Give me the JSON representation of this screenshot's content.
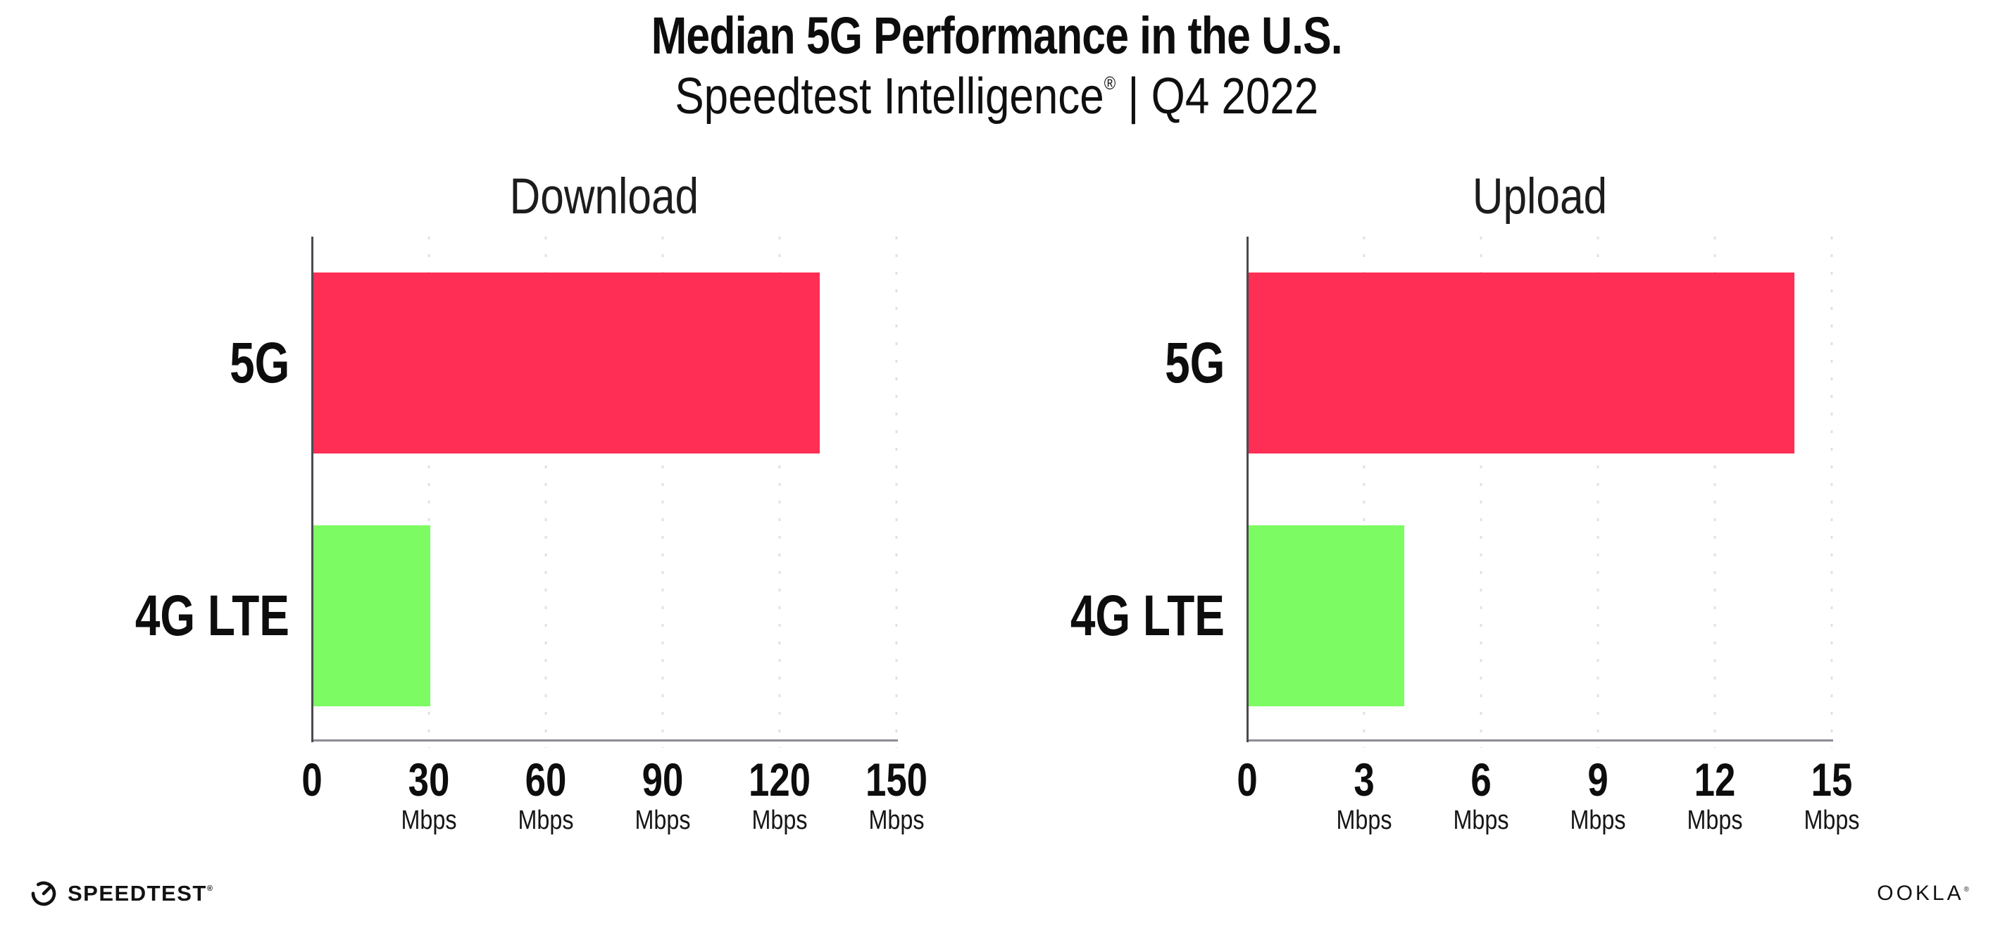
{
  "header": {
    "title": "Median 5G Performance in the U.S.",
    "subtitle_brand": "Speedtest Intelligence",
    "subtitle_mark": "®",
    "subtitle_rest": " | Q4 2022"
  },
  "chart_data": [
    {
      "type": "bar",
      "orientation": "horizontal",
      "title": "Download",
      "categories": [
        "5G",
        "4G LTE"
      ],
      "values": [
        130,
        30
      ],
      "unit": "Mbps",
      "xlim": [
        0,
        150
      ],
      "ticks": [
        {
          "value": 0,
          "label": "0",
          "unit": ""
        },
        {
          "value": 30,
          "label": "30",
          "unit": "Mbps"
        },
        {
          "value": 60,
          "label": "60",
          "unit": "Mbps"
        },
        {
          "value": 90,
          "label": "90",
          "unit": "Mbps"
        },
        {
          "value": 120,
          "label": "120",
          "unit": "Mbps"
        },
        {
          "value": 150,
          "label": "150",
          "unit": "Mbps"
        }
      ],
      "bar_colors": [
        "#FF2E55",
        "#7CFB63"
      ],
      "grid": "dotted-vertical",
      "legend": "none"
    },
    {
      "type": "bar",
      "orientation": "horizontal",
      "title": "Upload",
      "categories": [
        "5G",
        "4G LTE"
      ],
      "values": [
        14,
        4
      ],
      "unit": "Mbps",
      "xlim": [
        0,
        15
      ],
      "ticks": [
        {
          "value": 0,
          "label": "0",
          "unit": ""
        },
        {
          "value": 3,
          "label": "3",
          "unit": "Mbps"
        },
        {
          "value": 6,
          "label": "6",
          "unit": "Mbps"
        },
        {
          "value": 9,
          "label": "9",
          "unit": "Mbps"
        },
        {
          "value": 12,
          "label": "12",
          "unit": "Mbps"
        },
        {
          "value": 15,
          "label": "15",
          "unit": "Mbps"
        }
      ],
      "bar_colors": [
        "#FF2E55",
        "#7CFB63"
      ],
      "grid": "dotted-vertical",
      "legend": "none"
    }
  ],
  "colors": {
    "bar_5g": "#FF2E55",
    "bar_4g_lte": "#7CFB63",
    "gridline": "#E0E0EA",
    "axis_x": "#8C8C94",
    "axis_y": "#4A4A52",
    "text": "#111111"
  },
  "footer": {
    "speedtest_label": "SPEEDTEST",
    "speedtest_mark": "®",
    "ookla_label": "OOKLA",
    "ookla_mark": "®"
  }
}
